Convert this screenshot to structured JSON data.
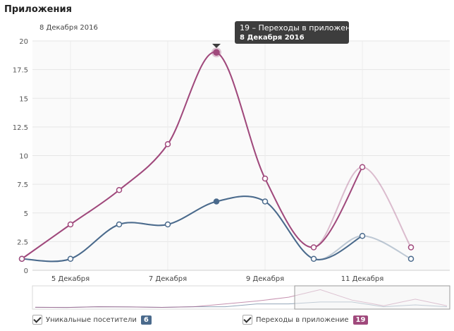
{
  "page_title": "Приложения",
  "date_label": "8 Декабря 2016",
  "tooltip": {
    "value_line": "19 – Переходы в приложение",
    "date_line": "8 Декабря 2016"
  },
  "legend": [
    {
      "label": "Уникальные посетители",
      "value": "6",
      "color": "#4a6a8c"
    },
    {
      "label": "Переходы в приложение",
      "value": "19",
      "color": "#a0497c"
    }
  ],
  "chart_data": {
    "type": "line",
    "x": [
      "4 Декабря",
      "5 Декабря",
      "6 Декабря",
      "7 Декабря",
      "8 Декабря",
      "9 Декабря",
      "10 Декабря",
      "11 Декабря",
      "12 Декабря"
    ],
    "x_tick_labels": [
      "5 Декабря",
      "7 Декабря",
      "9 Декабря",
      "11 Декабря"
    ],
    "y_tick_labels": [
      "0",
      "2.5",
      "5",
      "7.5",
      "10",
      "12.5",
      "15",
      "17.5",
      "20"
    ],
    "ylim": [
      0,
      20
    ],
    "grid": true,
    "series": [
      {
        "name": "Уникальные посетители",
        "color": "#4a6a8c",
        "values": [
          1,
          1,
          4,
          4,
          6,
          6,
          1,
          3,
          1
        ]
      },
      {
        "name": "Переходы в приложение",
        "color": "#a0497c",
        "values": [
          1,
          4,
          7,
          11,
          19,
          8,
          2,
          9,
          2
        ]
      }
    ],
    "highlighted_point": {
      "series": "Переходы в приложение",
      "x": "8 Декабря",
      "value": 19
    }
  }
}
